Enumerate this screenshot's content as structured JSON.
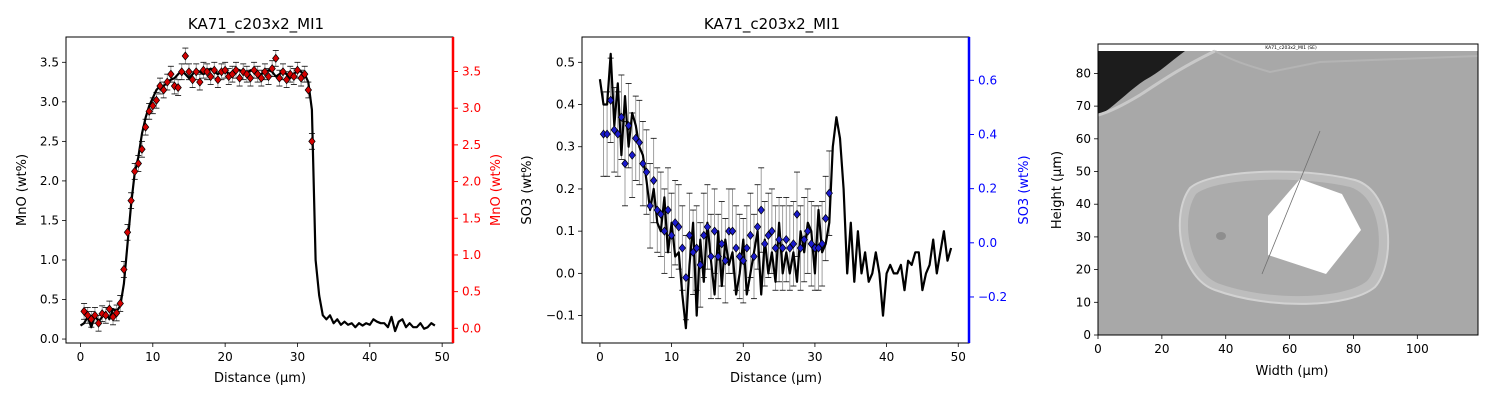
{
  "colors": {
    "mno_marker": "#d40000",
    "mno_axis": "#ff0000",
    "so3_marker": "#1a1acc",
    "so3_axis": "#0000ff",
    "line": "#000000",
    "errorbar": "#888888"
  },
  "chart_data": [
    {
      "type": "line",
      "title": "KA71_c203x2_MI1",
      "xlabel": "Distance (µm)",
      "ylabel": "MnO (wt%)",
      "y2label": "MnO (wt%)",
      "xlim": [
        -2,
        51.5
      ],
      "ylim": [
        -0.05,
        3.82
      ],
      "y2lim": [
        -0.2,
        3.97
      ],
      "xticks": [
        0,
        10,
        20,
        30,
        40,
        50
      ],
      "yticks": [
        0.0,
        0.5,
        1.0,
        1.5,
        2.0,
        2.5,
        3.0,
        3.5
      ],
      "y2ticks": [
        0.0,
        0.5,
        1.0,
        1.5,
        2.0,
        2.5,
        3.0,
        3.5
      ],
      "grid": false,
      "profile": {
        "x": [
          0,
          0.5,
          1,
          1.5,
          2,
          2.5,
          3,
          3.5,
          4,
          4.5,
          5,
          5.5,
          6,
          6.5,
          7,
          7.5,
          8,
          8.5,
          9,
          9.5,
          10,
          10.5,
          11,
          11.5,
          12,
          12.5,
          13,
          13.5,
          14,
          14.5,
          15,
          15.5,
          16,
          16.5,
          17,
          17.5,
          18,
          18.5,
          19,
          19.5,
          20,
          20.5,
          21,
          21.5,
          22,
          22.5,
          23,
          23.5,
          24,
          24.5,
          25,
          25.5,
          26,
          26.5,
          27,
          27.5,
          28,
          28.5,
          29,
          29.5,
          30,
          30.5,
          31,
          31.5,
          32,
          32.5,
          33,
          33.5,
          34,
          34.5,
          35,
          35.5,
          36,
          36.5,
          37,
          37.5,
          38,
          38.5,
          39,
          39.5,
          40,
          40.5,
          41,
          41.5,
          42,
          42.5,
          43,
          43.5,
          44,
          44.5,
          45,
          45.5,
          46,
          46.5,
          47,
          47.5,
          48,
          48.5,
          49
        ],
        "y": [
          0.17,
          0.2,
          0.28,
          0.15,
          0.3,
          0.22,
          0.28,
          0.34,
          0.25,
          0.38,
          0.35,
          0.42,
          0.7,
          1.2,
          1.7,
          2.1,
          2.3,
          2.6,
          2.8,
          2.95,
          3.05,
          3.15,
          3.2,
          3.2,
          3.25,
          3.28,
          3.3,
          3.35,
          3.4,
          3.35,
          3.3,
          3.35,
          3.4,
          3.38,
          3.35,
          3.38,
          3.42,
          3.38,
          3.35,
          3.38,
          3.4,
          3.35,
          3.38,
          3.42,
          3.4,
          3.38,
          3.35,
          3.4,
          3.38,
          3.35,
          3.35,
          3.38,
          3.4,
          3.38,
          3.32,
          3.35,
          3.38,
          3.35,
          3.3,
          3.35,
          3.4,
          3.38,
          3.35,
          3.25,
          2.9,
          1.0,
          0.55,
          0.3,
          0.25,
          0.3,
          0.2,
          0.25,
          0.18,
          0.22,
          0.18,
          0.2,
          0.15,
          0.2,
          0.17,
          0.2,
          0.18,
          0.25,
          0.22,
          0.2,
          0.2,
          0.15,
          0.28,
          0.1,
          0.22,
          0.25,
          0.15,
          0.2,
          0.15,
          0.15,
          0.2,
          0.13,
          0.15,
          0.2,
          0.17
        ]
      },
      "markers": {
        "x": [
          0.5,
          1,
          1.5,
          2,
          2.5,
          3,
          3.5,
          4,
          4.5,
          5,
          5.5,
          6,
          6.5,
          7,
          7.5,
          8,
          8.5,
          9,
          9.5,
          10,
          10.5,
          11,
          11.5,
          12,
          12.5,
          13,
          13.5,
          14,
          14.5,
          15,
          15.5,
          16,
          16.5,
          17,
          17.5,
          18,
          18.5,
          19,
          19.5,
          20,
          20.5,
          21,
          21.5,
          22,
          22.5,
          23,
          23.5,
          24,
          24.5,
          25,
          25.5,
          26,
          26.5,
          27,
          27.5,
          28,
          28.5,
          29,
          29.5,
          30,
          30.5,
          31,
          31.5,
          32
        ],
        "y": [
          0.35,
          0.3,
          0.25,
          0.3,
          0.2,
          0.32,
          0.3,
          0.38,
          0.28,
          0.33,
          0.45,
          0.88,
          1.35,
          1.75,
          2.12,
          2.22,
          2.4,
          2.68,
          2.88,
          2.95,
          3.02,
          3.2,
          3.15,
          3.25,
          3.35,
          3.2,
          3.18,
          3.38,
          3.58,
          3.38,
          3.28,
          3.38,
          3.25,
          3.4,
          3.38,
          3.32,
          3.4,
          3.28,
          3.38,
          3.4,
          3.32,
          3.35,
          3.4,
          3.3,
          3.38,
          3.35,
          3.3,
          3.4,
          3.35,
          3.3,
          3.38,
          3.32,
          3.42,
          3.55,
          3.3,
          3.38,
          3.28,
          3.35,
          3.32,
          3.4,
          3.3,
          3.35,
          3.15,
          2.5
        ],
        "err": 0.1
      }
    },
    {
      "type": "line",
      "title": "KA71_c203x2_MI1",
      "xlabel": "Distance (µm)",
      "ylabel": "SO3 (wt%)",
      "y2label": "SO3 (wt%)",
      "xlim": [
        -2.5,
        51.5
      ],
      "ylim": [
        -0.165,
        0.56
      ],
      "y2lim": [
        -0.37,
        0.76
      ],
      "xticks": [
        0,
        10,
        20,
        30,
        40,
        50
      ],
      "yticks": [
        -0.1,
        0.0,
        0.1,
        0.2,
        0.3,
        0.4,
        0.5
      ],
      "y2ticks": [
        -0.2,
        0.0,
        0.2,
        0.4,
        0.6
      ],
      "grid": false,
      "profile": {
        "x": [
          0,
          0.5,
          1,
          1.5,
          2,
          2.5,
          3,
          3.5,
          4,
          4.5,
          5,
          5.5,
          6,
          6.5,
          7,
          7.5,
          8,
          8.5,
          9,
          9.5,
          10,
          10.5,
          11,
          11.5,
          12,
          12.5,
          13,
          13.5,
          14,
          14.5,
          15,
          15.5,
          16,
          16.5,
          17,
          17.5,
          18,
          18.5,
          19,
          19.5,
          20,
          20.5,
          21,
          21.5,
          22,
          22.5,
          23,
          23.5,
          24,
          24.5,
          25,
          25.5,
          26,
          26.5,
          27,
          27.5,
          28,
          28.5,
          29,
          29.5,
          30,
          30.5,
          31,
          31.5,
          32,
          32.5,
          33,
          33.5,
          34,
          34.5,
          35,
          35.5,
          36,
          36.5,
          37,
          37.5,
          38,
          38.5,
          39,
          39.5,
          40,
          40.5,
          41,
          41.5,
          42,
          42.5,
          43,
          43.5,
          44,
          44.5,
          45,
          45.5,
          46,
          46.5,
          47,
          47.5,
          48,
          48.5,
          49
        ],
        "y": [
          0.46,
          0.4,
          0.4,
          0.52,
          0.35,
          0.45,
          0.28,
          0.42,
          0.3,
          0.38,
          0.35,
          0.3,
          0.28,
          0.22,
          0.15,
          0.2,
          0.12,
          0.1,
          0.18,
          0.05,
          0.12,
          0.04,
          0.05,
          -0.05,
          -0.13,
          0.02,
          0.12,
          -0.1,
          0.08,
          -0.02,
          0.12,
          0.03,
          -0.05,
          0.1,
          -0.03,
          0.08,
          0.02,
          0.05,
          -0.05,
          0.0,
          0.08,
          -0.05,
          0.0,
          0.05,
          0.1,
          -0.05,
          0.08,
          0.0,
          0.05,
          -0.02,
          0.12,
          0.0,
          0.05,
          0.0,
          0.05,
          -0.02,
          0.1,
          0.05,
          0.12,
          0.1,
          0.0,
          0.15,
          0.05,
          0.07,
          0.12,
          0.3,
          0.37,
          0.32,
          0.2,
          0.0,
          0.12,
          -0.02,
          0.1,
          0.0,
          0.05,
          -0.02,
          0.0,
          0.05,
          0.0,
          -0.1,
          0.0,
          0.02,
          0.0,
          0.0,
          0.02,
          -0.04,
          0.03,
          0.02,
          0.05,
          0.05,
          -0.04,
          0.0,
          0.02,
          0.08,
          0.0,
          0.05,
          0.1,
          0.03,
          0.06
        ]
      },
      "markers": {
        "x": [
          0.5,
          1,
          1.5,
          2,
          2.5,
          3,
          3.5,
          4,
          4.5,
          5,
          5.5,
          6,
          6.5,
          7,
          7.5,
          8,
          8.5,
          9,
          9.5,
          10,
          10.5,
          11,
          11.5,
          12,
          12.5,
          13,
          13.5,
          14,
          14.5,
          15,
          15.5,
          16,
          16.5,
          17,
          17.5,
          18,
          18.5,
          19,
          19.5,
          20,
          20.5,
          21,
          21.5,
          22,
          22.5,
          23,
          23.5,
          24,
          24.5,
          25,
          25.5,
          26,
          26.5,
          27,
          27.5,
          28,
          28.5,
          29,
          29.5,
          30,
          30.5,
          31,
          31.5,
          32
        ],
        "y": [
          0.33,
          0.33,
          0.41,
          0.34,
          0.33,
          0.37,
          0.26,
          0.35,
          0.28,
          0.32,
          0.31,
          0.26,
          0.24,
          0.16,
          0.22,
          0.15,
          0.14,
          0.1,
          0.15,
          0.09,
          0.12,
          0.11,
          0.06,
          -0.01,
          0.09,
          0.05,
          0.06,
          0.02,
          0.09,
          0.11,
          0.04,
          0.1,
          0.04,
          0.07,
          0.03,
          0.1,
          0.1,
          0.06,
          0.04,
          0.03,
          0.06,
          0.09,
          0.04,
          0.11,
          0.15,
          0.07,
          0.09,
          0.1,
          0.06,
          0.08,
          0.06,
          0.08,
          0.06,
          0.07,
          0.14,
          0.06,
          0.08,
          0.1,
          0.07,
          0.06,
          0.06,
          0.07,
          0.13,
          0.19
        ],
        "err": 0.1
      }
    }
  ],
  "image_panel": {
    "caption": "KA71_c203x2_MI1 (SE)",
    "xlabel": "Width (µm)",
    "ylabel": "Height (µm)",
    "xlim": [
      0,
      119
    ],
    "ylim": [
      0,
      89
    ],
    "xticks": [
      0,
      20,
      40,
      60,
      80,
      100
    ],
    "yticks": [
      0,
      10,
      20,
      30,
      40,
      50,
      60,
      70,
      80
    ]
  }
}
